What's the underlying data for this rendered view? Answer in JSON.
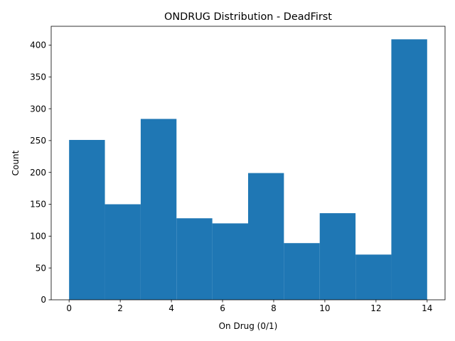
{
  "chart_data": {
    "type": "bar",
    "title": "ONDRUG Distribution - DeadFirst",
    "xlabel": "On Drug (0/1)",
    "ylabel": "Count",
    "bin_edges": [
      0,
      1.4,
      2.8,
      4.2,
      5.6,
      7.0,
      8.4,
      9.8,
      11.2,
      12.6,
      14.0
    ],
    "values": [
      251,
      150,
      284,
      128,
      120,
      199,
      89,
      136,
      71,
      409
    ],
    "xlim": [
      -0.7,
      14.7
    ],
    "ylim": [
      0,
      429.45
    ],
    "xticks": [
      0,
      2,
      4,
      6,
      8,
      10,
      12,
      14
    ],
    "yticks": [
      0,
      50,
      100,
      150,
      200,
      250,
      300,
      350,
      400
    ],
    "grid": false,
    "bar_color": "#1f77b4"
  }
}
